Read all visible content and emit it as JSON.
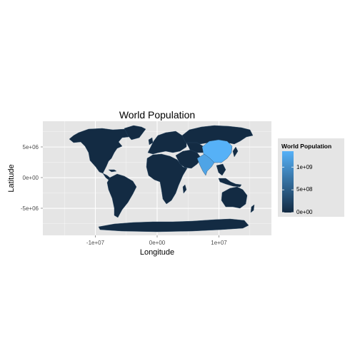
{
  "chart_data": {
    "type": "heatmap",
    "title": "World Population",
    "xlabel": "Longitude",
    "ylabel": "Latitude",
    "x_ticks": [
      {
        "value": -10000000,
        "label": "-1e+07"
      },
      {
        "value": 0,
        "label": "0e+00"
      },
      {
        "value": 10000000,
        "label": "1e+07"
      }
    ],
    "y_ticks": [
      {
        "value": 5000000,
        "label": "5e+06"
      },
      {
        "value": 0,
        "label": "0e+00"
      },
      {
        "value": -5000000,
        "label": "-5e+06"
      }
    ],
    "xlim": [
      -18500000,
      18500000
    ],
    "ylim": [
      -9400000,
      9200000
    ],
    "grid": true,
    "legend": {
      "title": "World Population",
      "placement": "right",
      "ticks": [
        {
          "value": 1000000000,
          "label": "1e+09"
        },
        {
          "value": 500000000,
          "label": "5e+08"
        },
        {
          "value": 0,
          "label": "0e+00"
        }
      ],
      "range": [
        0,
        1350000000
      ],
      "low_color": "#132b43",
      "high_color": "#56b1f7"
    },
    "highlighted_regions": [
      {
        "region": "China",
        "population": 1350000000
      },
      {
        "region": "India",
        "population": 1230000000
      }
    ],
    "panel_color": "#e5e5e5",
    "grid_color": "#ffffff"
  }
}
